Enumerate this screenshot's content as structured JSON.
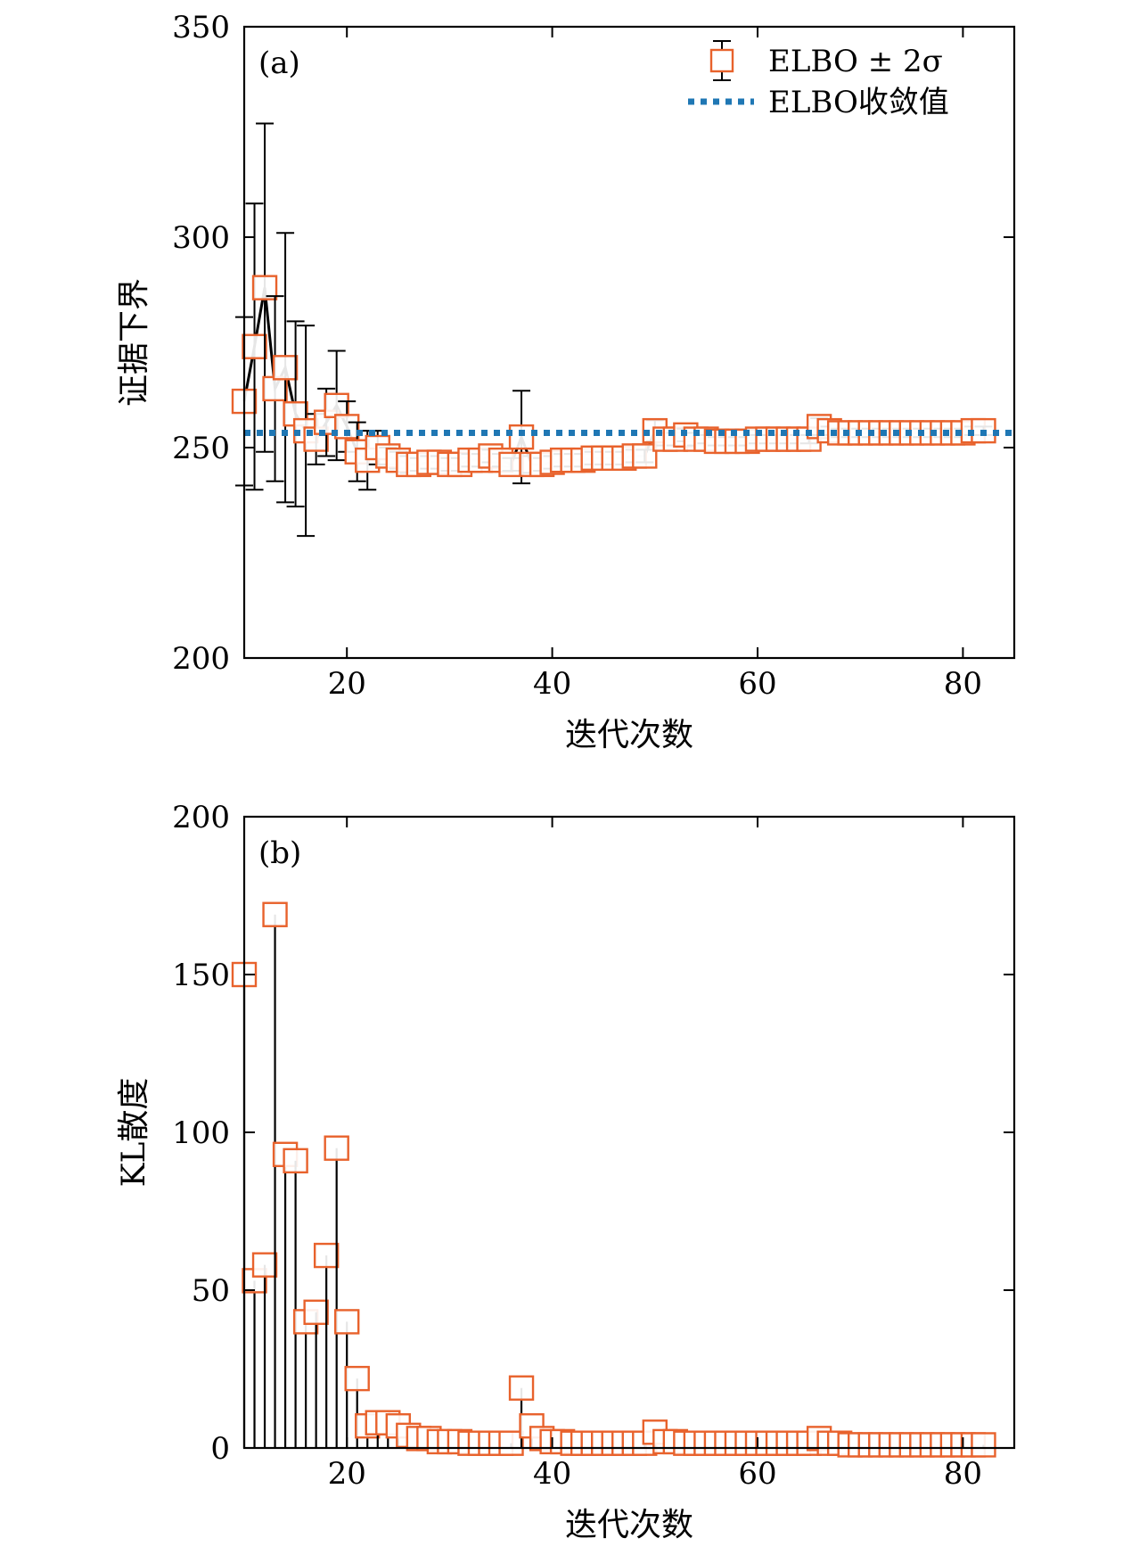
{
  "chart_data": [
    {
      "type": "scatter",
      "panel_label": "(a)",
      "xlabel": "迭代次数",
      "ylabel": "证据下界",
      "xlim": [
        10,
        85
      ],
      "ylim": [
        200,
        350
      ],
      "xticks": [
        20,
        40,
        60,
        80
      ],
      "yticks": [
        200,
        250,
        300,
        350
      ],
      "grid": false,
      "legend_position": "top-right",
      "legend": [
        "ELBO ± 2σ",
        "ELBO收敛值"
      ],
      "marker_color": "#e8622c",
      "errorbar_color": "#000000",
      "reference_color": "#1f77b4",
      "reference_line": {
        "name": "ELBO收敛值",
        "y": 253.5,
        "style": "dotted"
      },
      "series": [
        {
          "name": "ELBO ± 2σ",
          "x": [
            10,
            11,
            12,
            13,
            14,
            15,
            16,
            17,
            18,
            19,
            20,
            21,
            22,
            23,
            24,
            25,
            26,
            27,
            28,
            29,
            30,
            31,
            32,
            33,
            34,
            35,
            36,
            37,
            38,
            39,
            40,
            41,
            42,
            43,
            44,
            45,
            46,
            47,
            48,
            49,
            50,
            51,
            52,
            53,
            54,
            55,
            56,
            57,
            58,
            59,
            60,
            61,
            62,
            63,
            64,
            65,
            66,
            67,
            68,
            69,
            70,
            71,
            72,
            73,
            74,
            75,
            76,
            77,
            78,
            79,
            80,
            81,
            82
          ],
          "y": [
            261,
            274,
            288,
            264,
            269,
            258,
            254,
            252,
            256,
            260,
            255,
            249,
            247,
            250,
            248,
            247,
            246,
            246,
            246.5,
            246.5,
            246,
            246,
            247,
            247,
            248,
            247,
            246,
            252.5,
            246,
            246,
            246.5,
            247,
            247,
            247,
            247.5,
            247.5,
            247.5,
            247.5,
            248,
            248,
            254,
            252,
            252,
            253,
            252,
            252,
            251.5,
            251.5,
            251.5,
            251.5,
            252,
            252,
            252,
            252,
            252,
            252,
            255,
            254,
            253.5,
            253.5,
            253.5,
            253.5,
            253.5,
            253.5,
            253.5,
            253.5,
            253.5,
            253.5,
            253.5,
            253.5,
            253.5,
            254,
            254
          ],
          "err": [
            20,
            34,
            39,
            22,
            32,
            22,
            25,
            6,
            8,
            13,
            6,
            7,
            7,
            4,
            2,
            2,
            2,
            1.5,
            1.5,
            1.5,
            1.5,
            1.5,
            1.5,
            1.5,
            1.5,
            1.5,
            1.5,
            11,
            2,
            1.5,
            1.5,
            1.5,
            1.5,
            1.5,
            1.5,
            1.5,
            1.5,
            1.5,
            1.5,
            1.5,
            2.5,
            1.5,
            1.5,
            1.5,
            1.5,
            1,
            1,
            1,
            1,
            1,
            1,
            1,
            1,
            1,
            1,
            1,
            2,
            1,
            1,
            1,
            1,
            1,
            1,
            1,
            1,
            1,
            1,
            1,
            1,
            1,
            1,
            1,
            1
          ]
        }
      ]
    },
    {
      "type": "bar",
      "panel_label": "(b)",
      "xlabel": "迭代次数",
      "ylabel": "KL散度",
      "xlim": [
        10,
        85
      ],
      "ylim": [
        0,
        200
      ],
      "xticks": [
        20,
        40,
        60,
        80
      ],
      "yticks": [
        0,
        50,
        100,
        150,
        200
      ],
      "grid": false,
      "marker_color": "#e8622c",
      "stem_color": "#000000",
      "x": [
        10,
        11,
        12,
        13,
        14,
        15,
        16,
        17,
        18,
        19,
        20,
        21,
        22,
        23,
        24,
        25,
        26,
        27,
        28,
        29,
        30,
        31,
        32,
        33,
        34,
        35,
        36,
        37,
        38,
        39,
        40,
        41,
        42,
        43,
        44,
        45,
        46,
        47,
        48,
        49,
        50,
        51,
        52,
        53,
        54,
        55,
        56,
        57,
        58,
        59,
        60,
        61,
        62,
        63,
        64,
        65,
        66,
        67,
        68,
        69,
        70,
        71,
        72,
        73,
        74,
        75,
        76,
        77,
        78,
        79,
        80,
        81,
        82
      ],
      "values": [
        150,
        53,
        58,
        169,
        93,
        91,
        40,
        43,
        61,
        95,
        40,
        22,
        7,
        8,
        8,
        7,
        4,
        3,
        3,
        2,
        2,
        2,
        1.5,
        1.5,
        1.5,
        1.5,
        1.5,
        19,
        7,
        3,
        2,
        2,
        1.5,
        1.5,
        1.5,
        1.5,
        1.5,
        1.5,
        1.5,
        1.5,
        5,
        2,
        2,
        1.5,
        1.5,
        1.5,
        1.5,
        1.5,
        1.5,
        1.5,
        1.5,
        1.5,
        1.5,
        1.5,
        1.5,
        1.5,
        3,
        1.5,
        1.5,
        1,
        1,
        1,
        1,
        1,
        1,
        1,
        1,
        1,
        1,
        1,
        1,
        1,
        1
      ]
    }
  ]
}
